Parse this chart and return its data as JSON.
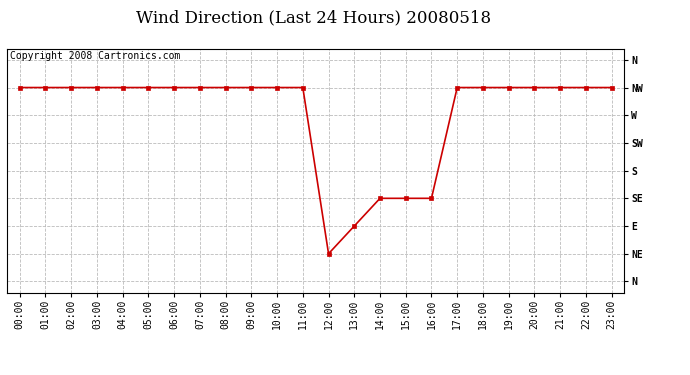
{
  "title": "Wind Direction (Last 24 Hours) 20080518",
  "copyright": "Copyright 2008 Cartronics.com",
  "background_color": "#ffffff",
  "plot_bg_color": "#ffffff",
  "line_color": "#cc0000",
  "marker_color": "#cc0000",
  "grid_color": "#bbbbbb",
  "ytick_labels": [
    "N",
    "NW",
    "W",
    "SW",
    "S",
    "SE",
    "E",
    "NE",
    "N"
  ],
  "ytick_positions": [
    8,
    7,
    6,
    5,
    4,
    3,
    2,
    1,
    0
  ],
  "hours": [
    0,
    1,
    2,
    3,
    4,
    5,
    6,
    7,
    8,
    9,
    10,
    11,
    12,
    13,
    14,
    15,
    16,
    17,
    18,
    19,
    20,
    21,
    22,
    23
  ],
  "wind_dirs": [
    7,
    7,
    7,
    7,
    7,
    7,
    7,
    7,
    7,
    7,
    7,
    7,
    1,
    2,
    3,
    3,
    3,
    7,
    7,
    7,
    7,
    7,
    7,
    7
  ],
  "xtick_labels": [
    "00:00",
    "01:00",
    "02:00",
    "03:00",
    "04:00",
    "05:00",
    "06:00",
    "07:00",
    "08:00",
    "09:00",
    "10:00",
    "11:00",
    "12:00",
    "13:00",
    "14:00",
    "15:00",
    "16:00",
    "17:00",
    "18:00",
    "19:00",
    "20:00",
    "21:00",
    "22:00",
    "23:00"
  ],
  "title_fontsize": 12,
  "copyright_fontsize": 7,
  "tick_fontsize": 7,
  "marker_size": 3
}
